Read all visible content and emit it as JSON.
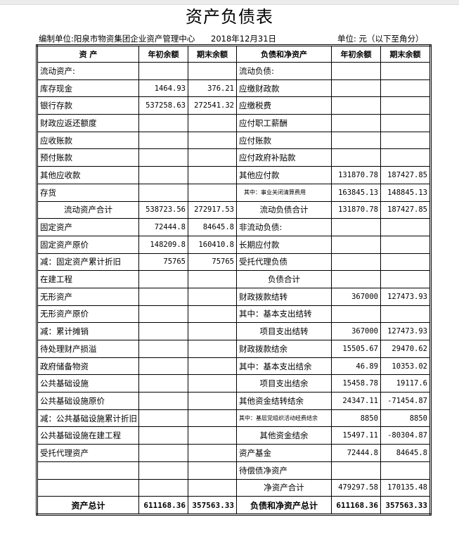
{
  "title": "资产负债表",
  "meta": {
    "unit_org": "编制单位:阳泉市物资集团企业资产管理中心",
    "date": "2018年12月31日",
    "unit": "单位: 元（以下至角分）"
  },
  "headers": [
    "资 产",
    "年初余额",
    "期末余额",
    "负债和净资产",
    "年初余额",
    "期末余额"
  ],
  "rows": [
    [
      "流动资产:",
      "",
      "",
      "流动负债:",
      "",
      ""
    ],
    [
      "库存现金",
      "1464.93",
      "376.21",
      "应缴财政款",
      "",
      ""
    ],
    [
      "银行存款",
      "537258.63",
      "272541.32",
      "应缴税费",
      "",
      ""
    ],
    [
      "财政应返还额度",
      "",
      "",
      "应付职工薪酬",
      "",
      ""
    ],
    [
      "应收账款",
      "",
      "",
      "应付账款",
      "",
      ""
    ],
    [
      "预付账款",
      "",
      "",
      "应付政府补贴款",
      "",
      ""
    ],
    [
      "其他应收款",
      "",
      "",
      "其他应付款",
      "131870.78",
      "187427.85"
    ],
    [
      "存货",
      "",
      "",
      "其中：事业关闭清算费用",
      "163845.13",
      "148845.13"
    ],
    [
      "流动资产合计",
      "538723.56",
      "272917.53",
      "流动负债合计",
      "131870.78",
      "187427.85"
    ],
    [
      "固定资产",
      "72444.8",
      "84645.8",
      "非流动负债:",
      "",
      ""
    ],
    [
      "固定资产原价",
      "148209.8",
      "160410.8",
      "长期应付款",
      "",
      ""
    ],
    [
      "减：固定资产累计折旧",
      "75765",
      "75765",
      "受托代理负债",
      "",
      ""
    ],
    [
      "在建工程",
      "",
      "",
      "负债合计",
      "",
      ""
    ],
    [
      "无形资产",
      "",
      "",
      "财政拨款结转",
      "367000",
      "127473.93"
    ],
    [
      "无形资产原价",
      "",
      "",
      "其中：基本支出结转",
      "",
      ""
    ],
    [
      "减：累计摊销",
      "",
      "",
      "项目支出结转",
      "367000",
      "127473.93"
    ],
    [
      "待处理财产损溢",
      "",
      "",
      "财政拨款结余",
      "15505.67",
      "29470.62"
    ],
    [
      "政府储备物资",
      "",
      "",
      "其中：基本支出结余",
      "46.89",
      "10353.02"
    ],
    [
      "公共基础设施",
      "",
      "",
      "项目支出结余",
      "15458.78",
      "19117.6"
    ],
    [
      "公共基础设施原价",
      "",
      "",
      "其他资金结转结余",
      "24347.11",
      "-71454.87"
    ],
    [
      "减：公共基础设施累计折旧",
      "",
      "",
      "其中：基层党组织活动经费结余",
      "8850",
      "8850"
    ],
    [
      "公共基础设施在建工程",
      "",
      "",
      "其他资金结余",
      "15497.11",
      "-80304.87"
    ],
    [
      "受托代理资产",
      "",
      "",
      "资产基金",
      "72444.8",
      "84645.8"
    ],
    [
      "",
      "",
      "",
      "待偿债净资产",
      "",
      ""
    ],
    [
      "",
      "",
      "",
      "净资产合计",
      "479297.58",
      "170135.48"
    ],
    [
      "资产总计",
      "611168.36",
      "357563.33",
      "负债和净资产总计",
      "611168.36",
      "357563.33"
    ]
  ]
}
